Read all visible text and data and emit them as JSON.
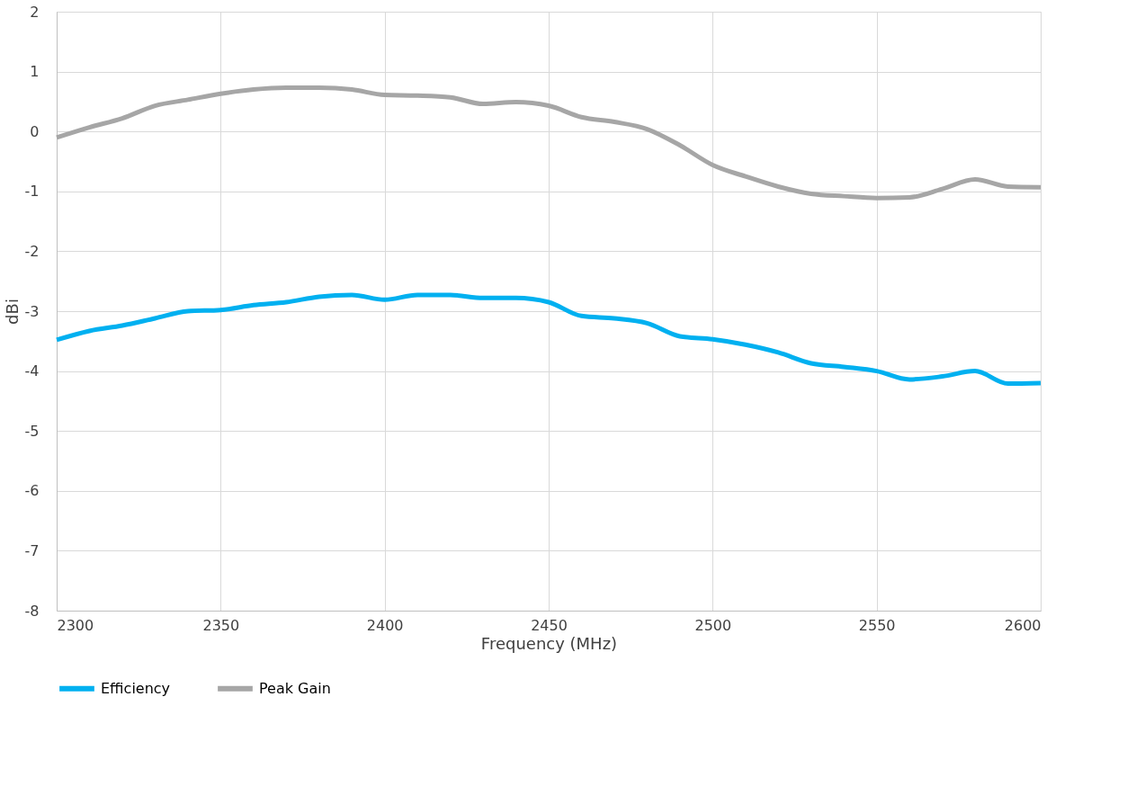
{
  "chart_data": {
    "type": "line",
    "xlabel": "Frequency (MHz)",
    "ylabel": "dBi",
    "x": [
      2300,
      2310,
      2320,
      2330,
      2340,
      2350,
      2360,
      2370,
      2380,
      2390,
      2400,
      2410,
      2420,
      2430,
      2440,
      2450,
      2460,
      2470,
      2480,
      2490,
      2500,
      2510,
      2520,
      2530,
      2540,
      2550,
      2560,
      2570,
      2580,
      2590,
      2600
    ],
    "series": [
      {
        "name": "Efficiency",
        "color": "#00b0f0",
        "values": [
          -3.48,
          -3.33,
          -3.24,
          -3.12,
          -3.0,
          -2.98,
          -2.9,
          -2.85,
          -2.76,
          -2.73,
          -2.81,
          -2.73,
          -2.73,
          -2.78,
          -2.78,
          -2.85,
          -3.08,
          -3.12,
          -3.2,
          -3.42,
          -3.47,
          -3.56,
          -3.69,
          -3.87,
          -3.93,
          -4.0,
          -4.14,
          -4.09,
          -4.0,
          -4.21,
          -4.2
        ]
      },
      {
        "name": "Peak Gain",
        "color": "#a6a6a6",
        "values": [
          -0.1,
          0.07,
          0.22,
          0.43,
          0.53,
          0.63,
          0.7,
          0.73,
          0.73,
          0.7,
          0.61,
          0.6,
          0.57,
          0.46,
          0.49,
          0.43,
          0.24,
          0.16,
          0.04,
          -0.23,
          -0.56,
          -0.75,
          -0.92,
          -1.04,
          -1.08,
          -1.11,
          -1.1,
          -0.96,
          -0.8,
          -0.92,
          -0.93
        ]
      }
    ],
    "xlim": [
      2300,
      2600
    ],
    "xticks": [
      2300,
      2350,
      2400,
      2450,
      2500,
      2550,
      2600
    ],
    "ylim": [
      -8,
      2
    ],
    "yticks": [
      -8,
      -7,
      -6,
      -5,
      -4,
      -3,
      -2,
      -1,
      0,
      1,
      2
    ],
    "grid": true,
    "legend": "bottom",
    "marker": "none",
    "line_style": "solid"
  }
}
